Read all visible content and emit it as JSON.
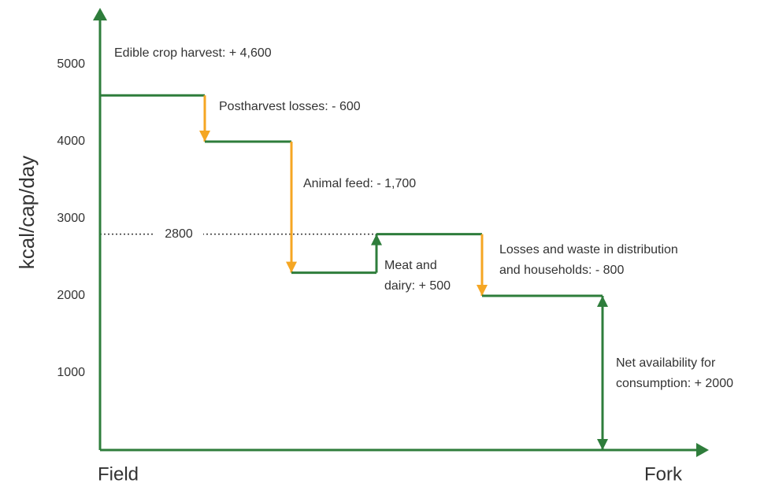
{
  "chart_data": {
    "type": "waterfall",
    "ylabel": "kcal/cap/day",
    "x_start_label": "Field",
    "x_end_label": "Fork",
    "value_labels": [
      [
        "Edible crop harvest: + 4,600"
      ],
      [
        "Postharvest losses: - 600"
      ],
      [
        "Animal feed: - 1,700"
      ],
      [
        "Meat and",
        "dairy: + 500"
      ],
      [
        "Losses and waste in distribution",
        "and households: - 800"
      ],
      [
        "Net availability for",
        "consumption: + 2000"
      ]
    ],
    "values": [
      4600,
      -600,
      -1700,
      500,
      -800,
      2000
    ],
    "total_index": 5,
    "colors": [
      "#2e7d3b",
      "#f5a623",
      "#f5a623",
      "#2e7d3b",
      "#f5a623",
      "#2e7d3b"
    ],
    "reference": {
      "value": 2800,
      "label": "2800"
    },
    "ylim": [
      0,
      5000
    ],
    "yticks": [
      1000,
      2000,
      3000,
      4000,
      5000
    ]
  }
}
